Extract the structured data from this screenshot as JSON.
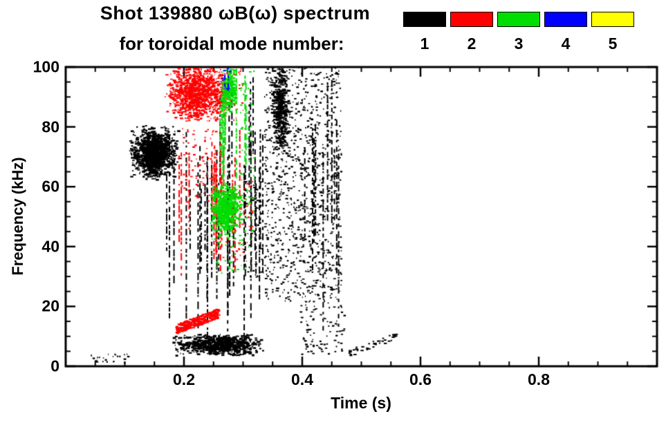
{
  "chart_data": {
    "type": "scatter",
    "title": "Shot 139880 ωB(ω) spectrum",
    "subtitle": "for toroidal mode number:",
    "xlabel": "Time (s)",
    "ylabel": "Frequency (kHz)",
    "xlim": [
      0,
      1.0
    ],
    "ylim": [
      0,
      100
    ],
    "xticks": [
      0.2,
      0.4,
      0.6,
      0.8
    ],
    "x_minor_step": 0.05,
    "yticks": [
      0,
      20,
      40,
      60,
      80,
      100
    ],
    "y_minor_step": 5,
    "grid": false,
    "legend_position": "top-right",
    "legend": [
      {
        "label": "1",
        "color": "#000000"
      },
      {
        "label": "2",
        "color": "#ff0000"
      },
      {
        "label": "3",
        "color": "#00dd00"
      },
      {
        "label": "4",
        "color": "#0000ff"
      },
      {
        "label": "5",
        "color": "#ffff00"
      }
    ],
    "series": [
      {
        "name": "n=1",
        "color": "#000000",
        "clusters": [
          {
            "style": "blob",
            "t": [
              0.105,
              0.19
            ],
            "f": [
              62,
              81
            ],
            "n": 1000
          },
          {
            "style": "blob",
            "t": [
              0.125,
              0.17
            ],
            "f": [
              65,
              78
            ],
            "n": 500
          },
          {
            "style": "vstreaks",
            "t": [
              0.165,
              0.335
            ],
            "f": [
              8,
              82
            ],
            "streaks": 28
          },
          {
            "style": "vstreaks",
            "t": [
              0.25,
              0.325
            ],
            "f": [
              55,
              100
            ],
            "streaks": 6
          },
          {
            "style": "blob",
            "t": [
              0.178,
              0.335
            ],
            "f": [
              3.5,
              11
            ],
            "n": 900
          },
          {
            "style": "sparse",
            "t": [
              0.335,
              0.465
            ],
            "f": [
              22,
              101
            ],
            "n": 1000
          },
          {
            "style": "blob",
            "t": [
              0.345,
              0.378
            ],
            "f": [
              70,
              101
            ],
            "n": 450
          },
          {
            "style": "vstreaks",
            "t": [
              0.385,
              0.462
            ],
            "f": [
              12,
              98
            ],
            "streaks": 10
          },
          {
            "style": "sparse",
            "t": [
              0.395,
              0.47
            ],
            "f": [
              4,
              22
            ],
            "n": 90
          },
          {
            "style": "band",
            "t": [
              0.478,
              0.558
            ],
            "f": [
              4.5,
              10.5
            ],
            "th": 1.2,
            "n": 40
          },
          {
            "style": "sparse",
            "t": [
              0.04,
              0.105
            ],
            "f": [
              1,
              4.5
            ],
            "n": 25
          },
          {
            "style": "sparse",
            "t": [
              0.3,
              0.345
            ],
            "f": [
              28,
              62
            ],
            "n": 70
          }
        ]
      },
      {
        "name": "n=2",
        "color": "#ff0000",
        "clusters": [
          {
            "style": "blob",
            "t": [
              0.165,
              0.275
            ],
            "f": [
              82,
              101
            ],
            "n": 1000
          },
          {
            "style": "sparse",
            "t": [
              0.19,
              0.3
            ],
            "f": [
              82,
              101
            ],
            "n": 150
          },
          {
            "style": "vstreaks",
            "t": [
              0.19,
              0.305
            ],
            "f": [
              30,
              82
            ],
            "streaks": 14
          },
          {
            "style": "band",
            "t": [
              0.185,
              0.258
            ],
            "f": [
              12.5,
              18
            ],
            "th": 1.6,
            "n": 320
          },
          {
            "style": "sparse",
            "t": [
              0.265,
              0.315
            ],
            "f": [
              35,
              62
            ],
            "n": 70
          },
          {
            "style": "sparse",
            "t": [
              0.195,
              0.255
            ],
            "f": [
              55,
              80
            ],
            "n": 90
          }
        ]
      },
      {
        "name": "n=3",
        "color": "#00dd00",
        "clusters": [
          {
            "style": "blob",
            "t": [
              0.242,
              0.298
            ],
            "f": [
              44,
              62
            ],
            "n": 650
          },
          {
            "style": "vstreaks",
            "t": [
              0.256,
              0.306
            ],
            "f": [
              58,
              100
            ],
            "streaks": 9
          },
          {
            "style": "blob",
            "t": [
              0.262,
              0.288
            ],
            "f": [
              84,
              101
            ],
            "n": 220
          },
          {
            "style": "sparse",
            "t": [
              0.292,
              0.318
            ],
            "f": [
              40,
              101
            ],
            "n": 60
          },
          {
            "style": "sparse",
            "t": [
              0.245,
              0.3
            ],
            "f": [
              30,
              45
            ],
            "n": 40
          }
        ]
      },
      {
        "name": "n=4",
        "color": "#0000ff",
        "clusters": [
          {
            "style": "vstreaks",
            "t": [
              0.262,
              0.274
            ],
            "f": [
              90,
              101
            ],
            "streaks": 2
          },
          {
            "style": "sparse",
            "t": [
              0.262,
              0.278
            ],
            "f": [
              92,
              101
            ],
            "n": 15
          }
        ]
      },
      {
        "name": "n=5",
        "color": "#ffff00",
        "clusters": []
      }
    ]
  },
  "layout_colors": {
    "frame": "#000000",
    "background": "#ffffff"
  }
}
